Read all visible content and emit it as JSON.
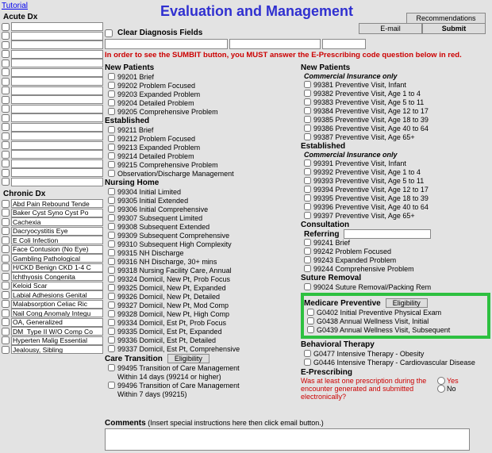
{
  "tutorial": "Tutorial",
  "title": "Evaluation and Management",
  "buttons": {
    "recommendations": "Recommendations",
    "email": "E-mail",
    "submit": "Submit",
    "clear": "Clear Diagnosis Fields",
    "eligibility": "Eligibility"
  },
  "warning": "In order to see the SUMBIT button, you MUST answer the E-Prescribing code question below in red.",
  "left": {
    "acute_label": "Acute Dx",
    "chronic_label": "Chronic Dx",
    "acute": [
      "",
      "",
      "",
      "",
      "",
      "",
      "",
      "",
      "",
      "",
      "",
      "",
      "",
      "",
      "",
      "",
      "",
      ""
    ],
    "chronic": [
      "Abd Pain Rebound Tende",
      "Baker Cyst Syno Cyst Po",
      "Cachexia",
      "Dacryocystitis Eye",
      "E Coli Infection",
      "Face Contusion (No Eye)",
      "Gambling Pathological",
      "H/CKD Benign CKD 1-4 C",
      "Ichthyosis Congenita",
      "Keloid Scar",
      "Labial Adhesions Genital",
      "Malabsorption Celiac Ric",
      "Nail Cong Anomaly Integu",
      "OA, Generalized",
      "DM  Type II W/O Comp Co",
      "Hyperten Malig Essential",
      "Jealousy, Sibling"
    ]
  },
  "groups": {
    "new_patients": "New Patients",
    "established": "Established",
    "nursing_home": "Nursing Home",
    "care_transition": "Care Transition",
    "commercial": "Commercial Insurance only",
    "consultation": "Consultation",
    "referring": "Referring",
    "suture_removal": "Suture Removal",
    "medicare_preventive": "Medicare Preventive",
    "behavioral_therapy": "Behavioral Therapy",
    "eprescribing": "E-Prescribing"
  },
  "codes_left": {
    "new": [
      "99201  Brief",
      "99202  Problem Focused",
      "99203  Expanded Problem",
      "99204  Detailed Problem",
      "99205  Comprehensive Problem"
    ],
    "est": [
      "99211  Brief",
      "99212  Problem Focused",
      "99213  Expanded Problem",
      "99214  Detailed Problem",
      "99215  Comprehensive Problem",
      "Observation/Discharge Management"
    ],
    "nh": [
      "99304  Initial Limited",
      "99305  Initial Extended",
      "99306  Initial Comprehensive",
      "99307  Subsequent Limited",
      "99308  Subsequent Extended",
      "99309  Subsequent Comprehensive",
      "99310  Subsequent High Complexity",
      "99315  NH Discharge",
      "99316  NH Discharge, 30+ mins",
      "99318  Nursing Facility Care, Annual",
      "99324  Domicil, New Pt, Prob Focus",
      "99325  Domicil, New Pt, Expanded",
      "99326  Domicil, New Pt, Detailed",
      "99327  Domicil, New Pt, Mod Comp",
      "99328  Domicil, New Pt, High Comp",
      "99334  Domicil, Est Pt, Prob Focus",
      "99335  Domicil, Est Pt, Expanded",
      "99336  Domicil, Est Pt, Detailed",
      "99337  Domicil, Est Pt, Comprehensive"
    ],
    "ct": [
      "99495  Transition of Care Management\n            Within 14 days (99214 or higher)",
      "99496  Transition of Care Management\n            Within 7 days (99215)"
    ]
  },
  "codes_right": {
    "new_ci": [
      "99381  Preventive Visit, Infant",
      "99382  Preventive Visit, Age 1 to 4",
      "99383  Preventive Visit, Age 5 to 11",
      "99384  Preventive Visit, Age 12 to 17",
      "99385  Preventive Visit, Age 18 to 39",
      "99386  Preventive Visit, Age 40 to 64",
      "99387  Preventive Visit, Age 65+"
    ],
    "est_ci": [
      "99391  Preventive Visit, Infant",
      "99392  Preventive Visit, Age 1 to 4",
      "99393  Preventive Visit, Age 5 to 11",
      "99394  Preventive Visit, Age 12 to 17",
      "99395  Preventive Visit, Age 18 to 39",
      "99396  Preventive Visit, Age 40 to 64",
      "99397  Preventive Visit, Age 65+"
    ],
    "cons": [
      "99241  Brief",
      "99242  Problem Focused",
      "99243  Expanded Problem",
      "99244  Comprehensive Problem"
    ],
    "suture": [
      "99024  Suture Removal/Packing Rem"
    ],
    "medicare": [
      "G0402  Initial Preventive Physical Exam",
      "G0438  Annual Wellness Visit, Initial",
      "G0439  Annual Wellness Visit, Subsequent"
    ],
    "bt": [
      "G0477  Intensive Therapy - Obesity",
      "G0446  Intensive Therapy - Cardiovascular Disease"
    ]
  },
  "eprescribe_q": "Was at least one prescription during the encounter generated and submitted electronically?",
  "yes": "Yes",
  "no": "No",
  "comments_label": "Comments",
  "comments_hint": "(Insert special instructions here then click email button.)"
}
